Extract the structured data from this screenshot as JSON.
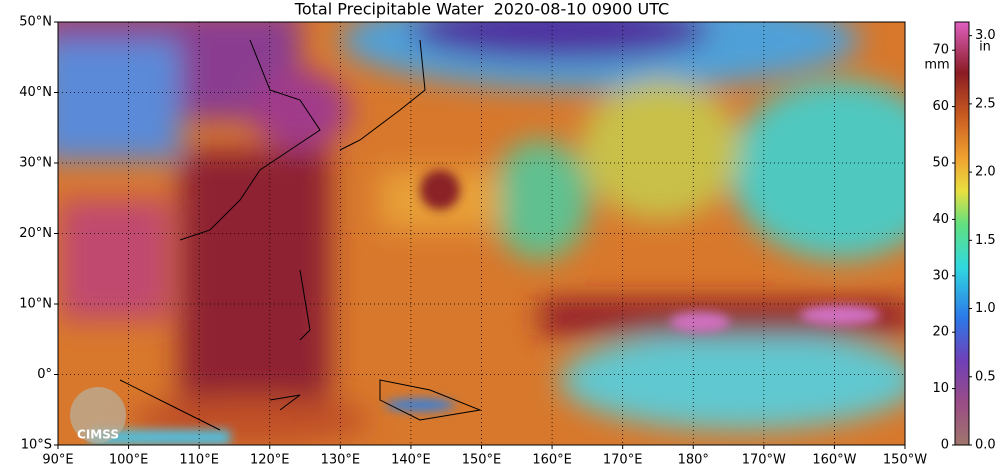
{
  "title": "Total Precipitable Water  2020-08-10 0900 UTC",
  "map": {
    "latlim": [
      -10,
      50
    ],
    "lonlim": [
      90,
      210
    ],
    "grid": true,
    "lat_ticks": [
      {
        "value": -10,
        "label": "10°S"
      },
      {
        "value": 0,
        "label": "0°"
      },
      {
        "value": 10,
        "label": "10°N"
      },
      {
        "value": 20,
        "label": "20°N"
      },
      {
        "value": 30,
        "label": "30°N"
      },
      {
        "value": 40,
        "label": "40°N"
      },
      {
        "value": 50,
        "label": "50°N"
      }
    ],
    "lon_ticks": [
      {
        "value": 90,
        "label": "90°E"
      },
      {
        "value": 100,
        "label": "100°E"
      },
      {
        "value": 110,
        "label": "110°E"
      },
      {
        "value": 120,
        "label": "120°E"
      },
      {
        "value": 130,
        "label": "130°E"
      },
      {
        "value": 140,
        "label": "140°E"
      },
      {
        "value": 150,
        "label": "150°E"
      },
      {
        "value": 160,
        "label": "160°E"
      },
      {
        "value": 170,
        "label": "170°E"
      },
      {
        "value": 180,
        "label": "180°"
      },
      {
        "value": 190,
        "label": "170°W"
      },
      {
        "value": 200,
        "label": "160°W"
      },
      {
        "value": 210,
        "label": "150°W"
      }
    ]
  },
  "colorbar": {
    "mm_label": "mm",
    "in_label": "in",
    "mm_lim": [
      0,
      75
    ],
    "mm_ticks": [
      0,
      10,
      20,
      30,
      40,
      50,
      60,
      70
    ],
    "in_lim": [
      0,
      3.1
    ],
    "in_ticks": [
      {
        "value": 0,
        "label": "0.0"
      },
      {
        "value": 0.5,
        "label": "0.5"
      },
      {
        "value": 1,
        "label": "1.0"
      },
      {
        "value": 1.5,
        "label": "1.5"
      },
      {
        "value": 2,
        "label": "2.0"
      },
      {
        "value": 2.5,
        "label": "2.5"
      },
      {
        "value": 3,
        "label": "3.0"
      }
    ]
  },
  "logo": "CIMSS"
}
